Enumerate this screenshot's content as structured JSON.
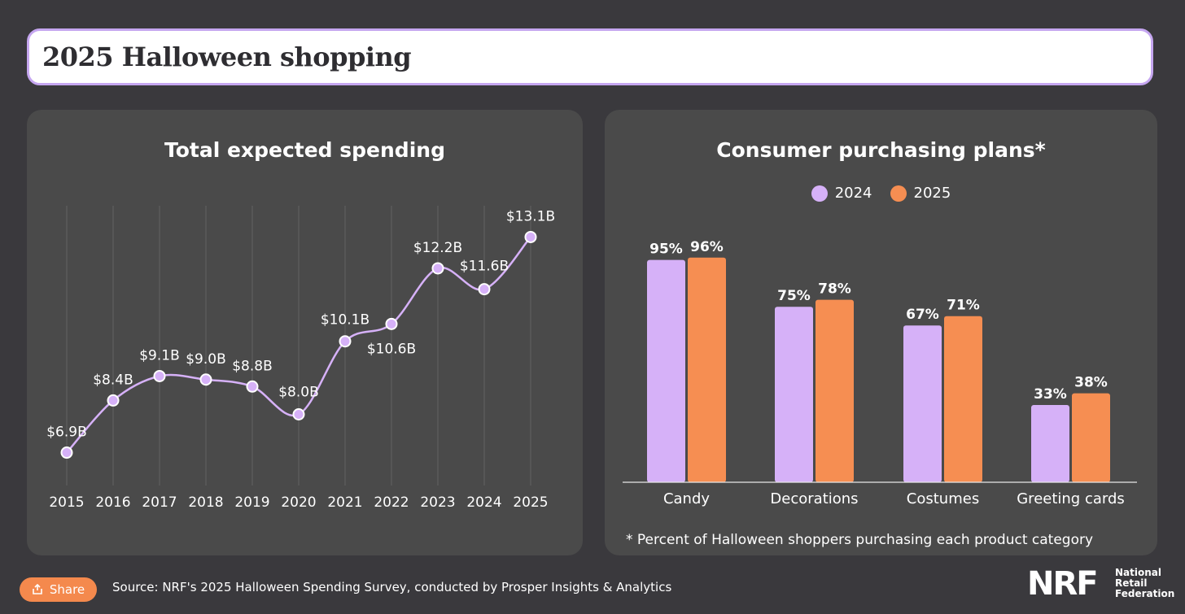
{
  "header": {
    "title": "2025 Halloween shopping"
  },
  "colors": {
    "series_2024": "#d6b1f8",
    "series_2025": "#f68e52",
    "panel": "#4a4a4a",
    "background": "#3a393d",
    "accent_border": "#c5a6f0"
  },
  "footer": {
    "share_label": "Share",
    "share_icon": "share-icon",
    "source": "Source: NRF's 2025 Halloween Spending Survey, conducted by Prosper Insights & Analytics",
    "logo": {
      "mark": "NRF",
      "text_lines": [
        "National",
        "Retail",
        "Federation"
      ]
    }
  },
  "chart_data": [
    {
      "type": "line",
      "title": "Total expected spending",
      "x": [
        "2015",
        "2016",
        "2017",
        "2018",
        "2019",
        "2020",
        "2021",
        "2022",
        "2023",
        "2024",
        "2025"
      ],
      "values": [
        6.9,
        8.4,
        9.1,
        9.0,
        8.8,
        8.0,
        10.1,
        10.6,
        12.2,
        11.6,
        13.1
      ],
      "labels": [
        "$6.9B",
        "$8.4B",
        "$9.1B",
        "$9.0B",
        "$8.8B",
        "$8.0B",
        "$10.1B",
        "$10.6B",
        "$12.2B",
        "$11.6B",
        "$13.1B"
      ],
      "unit": "billion USD",
      "grid": "vertical",
      "xlabel": "",
      "ylabel": "",
      "ylim": [
        6.0,
        14.0
      ]
    },
    {
      "type": "bar",
      "title": "Consumer purchasing plans*",
      "categories": [
        "Candy",
        "Decorations",
        "Costumes",
        "Greeting cards"
      ],
      "series": [
        {
          "name": "2024",
          "values": [
            95,
            75,
            67,
            33
          ]
        },
        {
          "name": "2025",
          "values": [
            96,
            78,
            71,
            38
          ]
        }
      ],
      "unit": "%",
      "legend": "top-center",
      "ylim": [
        0,
        100
      ],
      "footnote": "* Percent of Halloween shoppers purchasing each product category"
    }
  ]
}
